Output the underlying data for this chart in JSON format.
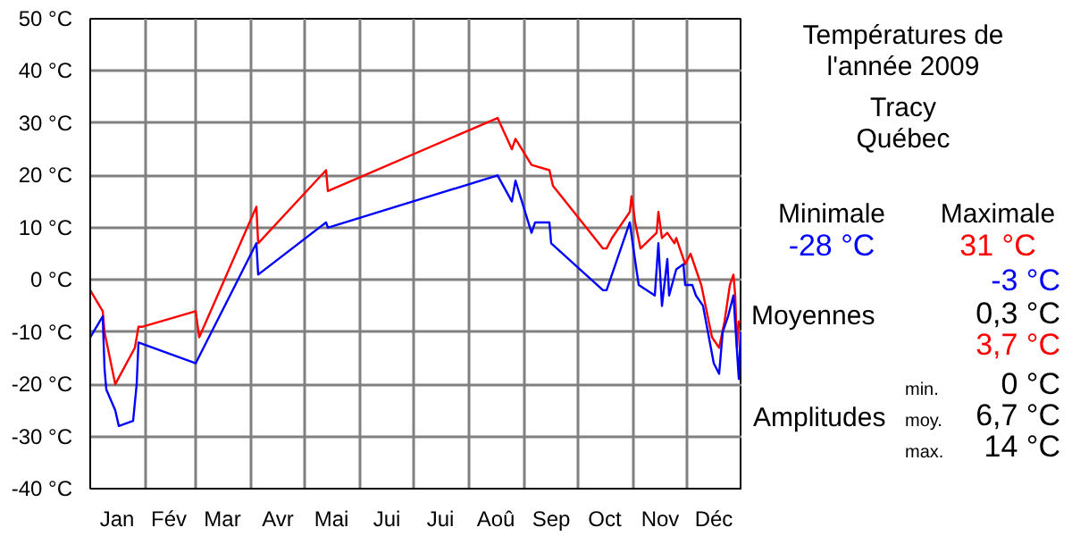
{
  "chart_data": {
    "type": "line",
    "title": "Températures de l'année 2009",
    "subtitle": "Tracy\nQuébec",
    "xlim": [
      "2009-01-01",
      "2010-01-01"
    ],
    "xticks": [
      {
        "value": "2009-01-01",
        "label": null
      },
      {
        "value": "2009-02-01",
        "label": null
      },
      {
        "value": "2009-03-01",
        "label": null
      },
      {
        "value": "2009-04-01",
        "label": null
      },
      {
        "value": "2009-05-01",
        "label": null
      },
      {
        "value": "2009-06-01",
        "label": null
      },
      {
        "value": "2009-07-01",
        "label": null
      },
      {
        "value": "2009-08-01",
        "label": null
      },
      {
        "value": "2009-09-01",
        "label": null
      },
      {
        "value": "2009-10-01",
        "label": null
      },
      {
        "value": "2009-11-01",
        "label": null
      },
      {
        "value": "2009-12-01",
        "label": null
      },
      {
        "value": "2009-01-16",
        "label": "Jan"
      },
      {
        "value": "2009-02-14",
        "label": "Fév"
      },
      {
        "value": "2009-03-16",
        "label": "Mar"
      },
      {
        "value": "2009-04-16",
        "label": "Avr"
      },
      {
        "value": "2009-05-16",
        "label": "Mai"
      },
      {
        "value": "2009-06-16",
        "label": "Jui"
      },
      {
        "value": "2009-07-16",
        "label": "Jui"
      },
      {
        "value": "2009-08-16",
        "label": "Aoû"
      },
      {
        "value": "2009-09-16",
        "label": "Sep"
      },
      {
        "value": "2009-10-16",
        "label": "Oct"
      },
      {
        "value": "2009-11-16",
        "label": "Nov"
      },
      {
        "value": "2009-12-16",
        "label": "Déc"
      }
    ],
    "ylim": [
      -40,
      50
    ],
    "yticks": [
      {
        "value": -40,
        "label": "-40 °C"
      },
      {
        "value": -30,
        "label": "-30 °C"
      },
      {
        "value": -20,
        "label": "-20 °C"
      },
      {
        "value": -10,
        "label": "-10 °C"
      },
      {
        "value": 0,
        "label": "0 °C"
      },
      {
        "value": 10,
        "label": "10 °C"
      },
      {
        "value": 20,
        "label": "20 °C"
      },
      {
        "value": 30,
        "label": "30 °C"
      },
      {
        "value": 40,
        "label": "40 °C"
      },
      {
        "value": 50,
        "label": "50 °C"
      }
    ],
    "grid": true,
    "marker": "none",
    "line_style": "solid",
    "series": [
      {
        "color": "#ff0000",
        "x": [
          "2009-01-01",
          "2009-01-08",
          "2009-01-09",
          "2009-01-15",
          "2009-01-26",
          "2009-01-28",
          "2009-01-30",
          "2009-03-01",
          "2009-03-03",
          "2009-04-04",
          "2009-04-05",
          "2009-05-13",
          "2009-05-14",
          "2009-08-17",
          "2009-08-25",
          "2009-08-27",
          "2009-09-05",
          "2009-09-15",
          "2009-09-17",
          "2009-10-15",
          "2009-10-17",
          "2009-10-20",
          "2009-10-30",
          "2009-10-31",
          "2009-11-02",
          "2009-11-05",
          "2009-11-14",
          "2009-11-15",
          "2009-11-17",
          "2009-11-20",
          "2009-11-24",
          "2009-11-25",
          "2009-11-30",
          "2009-12-03",
          "2009-12-09",
          "2009-12-15",
          "2009-12-19",
          "2009-12-22",
          "2009-12-25",
          "2009-12-27",
          "2009-12-28",
          "2009-12-29",
          "2009-12-30",
          "2009-12-31"
        ],
        "values": [
          -2,
          -6,
          -10,
          -20,
          -13,
          -9,
          -9,
          -6,
          -11,
          14,
          7,
          21,
          17,
          31,
          25,
          27,
          22,
          21,
          18,
          6,
          6,
          8,
          13,
          16,
          11,
          6,
          9,
          13,
          8,
          9,
          7,
          8,
          3,
          5,
          -1,
          -11,
          -13,
          -8,
          -1,
          1,
          -3,
          -13,
          -8,
          -8
        ]
      },
      {
        "color": "#0000ff",
        "x": [
          "2009-01-01",
          "2009-01-08",
          "2009-01-09",
          "2009-01-10",
          "2009-01-15",
          "2009-01-17",
          "2009-01-25",
          "2009-01-27",
          "2009-01-28",
          "2009-03-01",
          "2009-04-04",
          "2009-04-05",
          "2009-05-13",
          "2009-05-14",
          "2009-08-17",
          "2009-08-25",
          "2009-08-27",
          "2009-09-05",
          "2009-09-07",
          "2009-09-15",
          "2009-09-16",
          "2009-10-15",
          "2009-10-17",
          "2009-10-30",
          "2009-11-01",
          "2009-11-04",
          "2009-11-13",
          "2009-11-15",
          "2009-11-17",
          "2009-11-20",
          "2009-11-21",
          "2009-11-25",
          "2009-11-29",
          "2009-11-30",
          "2009-12-04",
          "2009-12-06",
          "2009-12-10",
          "2009-12-16",
          "2009-12-19",
          "2009-12-21",
          "2009-12-24",
          "2009-12-27",
          "2009-12-30",
          "2009-12-31"
        ],
        "values": [
          -11,
          -7,
          -17,
          -21,
          -25,
          -28,
          -27,
          -20,
          -12,
          -16,
          7,
          1,
          11,
          10,
          20,
          15,
          19,
          9,
          11,
          11,
          7,
          -2,
          -2,
          11,
          6,
          -1,
          -3,
          7,
          -5,
          4,
          -3,
          2,
          3,
          -1,
          -1,
          -3,
          -5,
          -16,
          -18,
          -10,
          -7,
          -3,
          -19,
          -10
        ]
      }
    ],
    "annotations": [
      "Minimale",
      "Maximale",
      "-28 °C",
      "31 °C",
      "-3 °C",
      "Moyennes",
      "0,3 °C",
      "3,7 °C",
      "0 °C",
      "Amplitudes",
      "min.",
      "moy.",
      "6,7 °C",
      "max.",
      "14 °C"
    ]
  }
}
